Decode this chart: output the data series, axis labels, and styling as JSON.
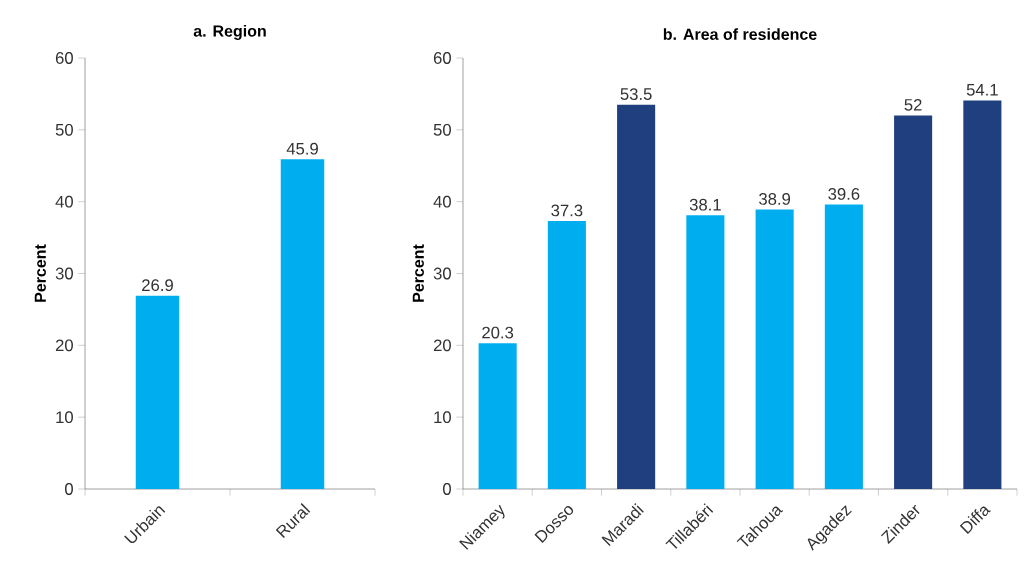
{
  "chart_data": [
    {
      "type": "bar",
      "title": "a. Region",
      "ylabel": "Percent",
      "categories": [
        "Urbain",
        "Rural"
      ],
      "values": [
        26.9,
        45.9
      ],
      "colors": [
        "#00aeef",
        "#00aeef"
      ],
      "ylim": [
        0,
        60
      ],
      "yticks": [
        0,
        10,
        20,
        30,
        40,
        50,
        60
      ],
      "data_labels": true
    },
    {
      "type": "bar",
      "title": "b. Area of residence",
      "ylabel": "Percent",
      "categories": [
        "Niamey",
        "Dosso",
        "Maradi",
        "Tillabéri",
        "Tahoua",
        "Agadez",
        "Zinder",
        "Diffa"
      ],
      "values": [
        20.3,
        37.3,
        53.5,
        38.1,
        38.9,
        39.6,
        52,
        54.1
      ],
      "colors": [
        "#00aeef",
        "#00aeef",
        "#1f3f7f",
        "#00aeef",
        "#00aeef",
        "#00aeef",
        "#1f3f7f",
        "#1f3f7f"
      ],
      "ylim": [
        0,
        60
      ],
      "yticks": [
        0,
        10,
        20,
        30,
        40,
        50,
        60
      ],
      "data_labels": true
    }
  ]
}
